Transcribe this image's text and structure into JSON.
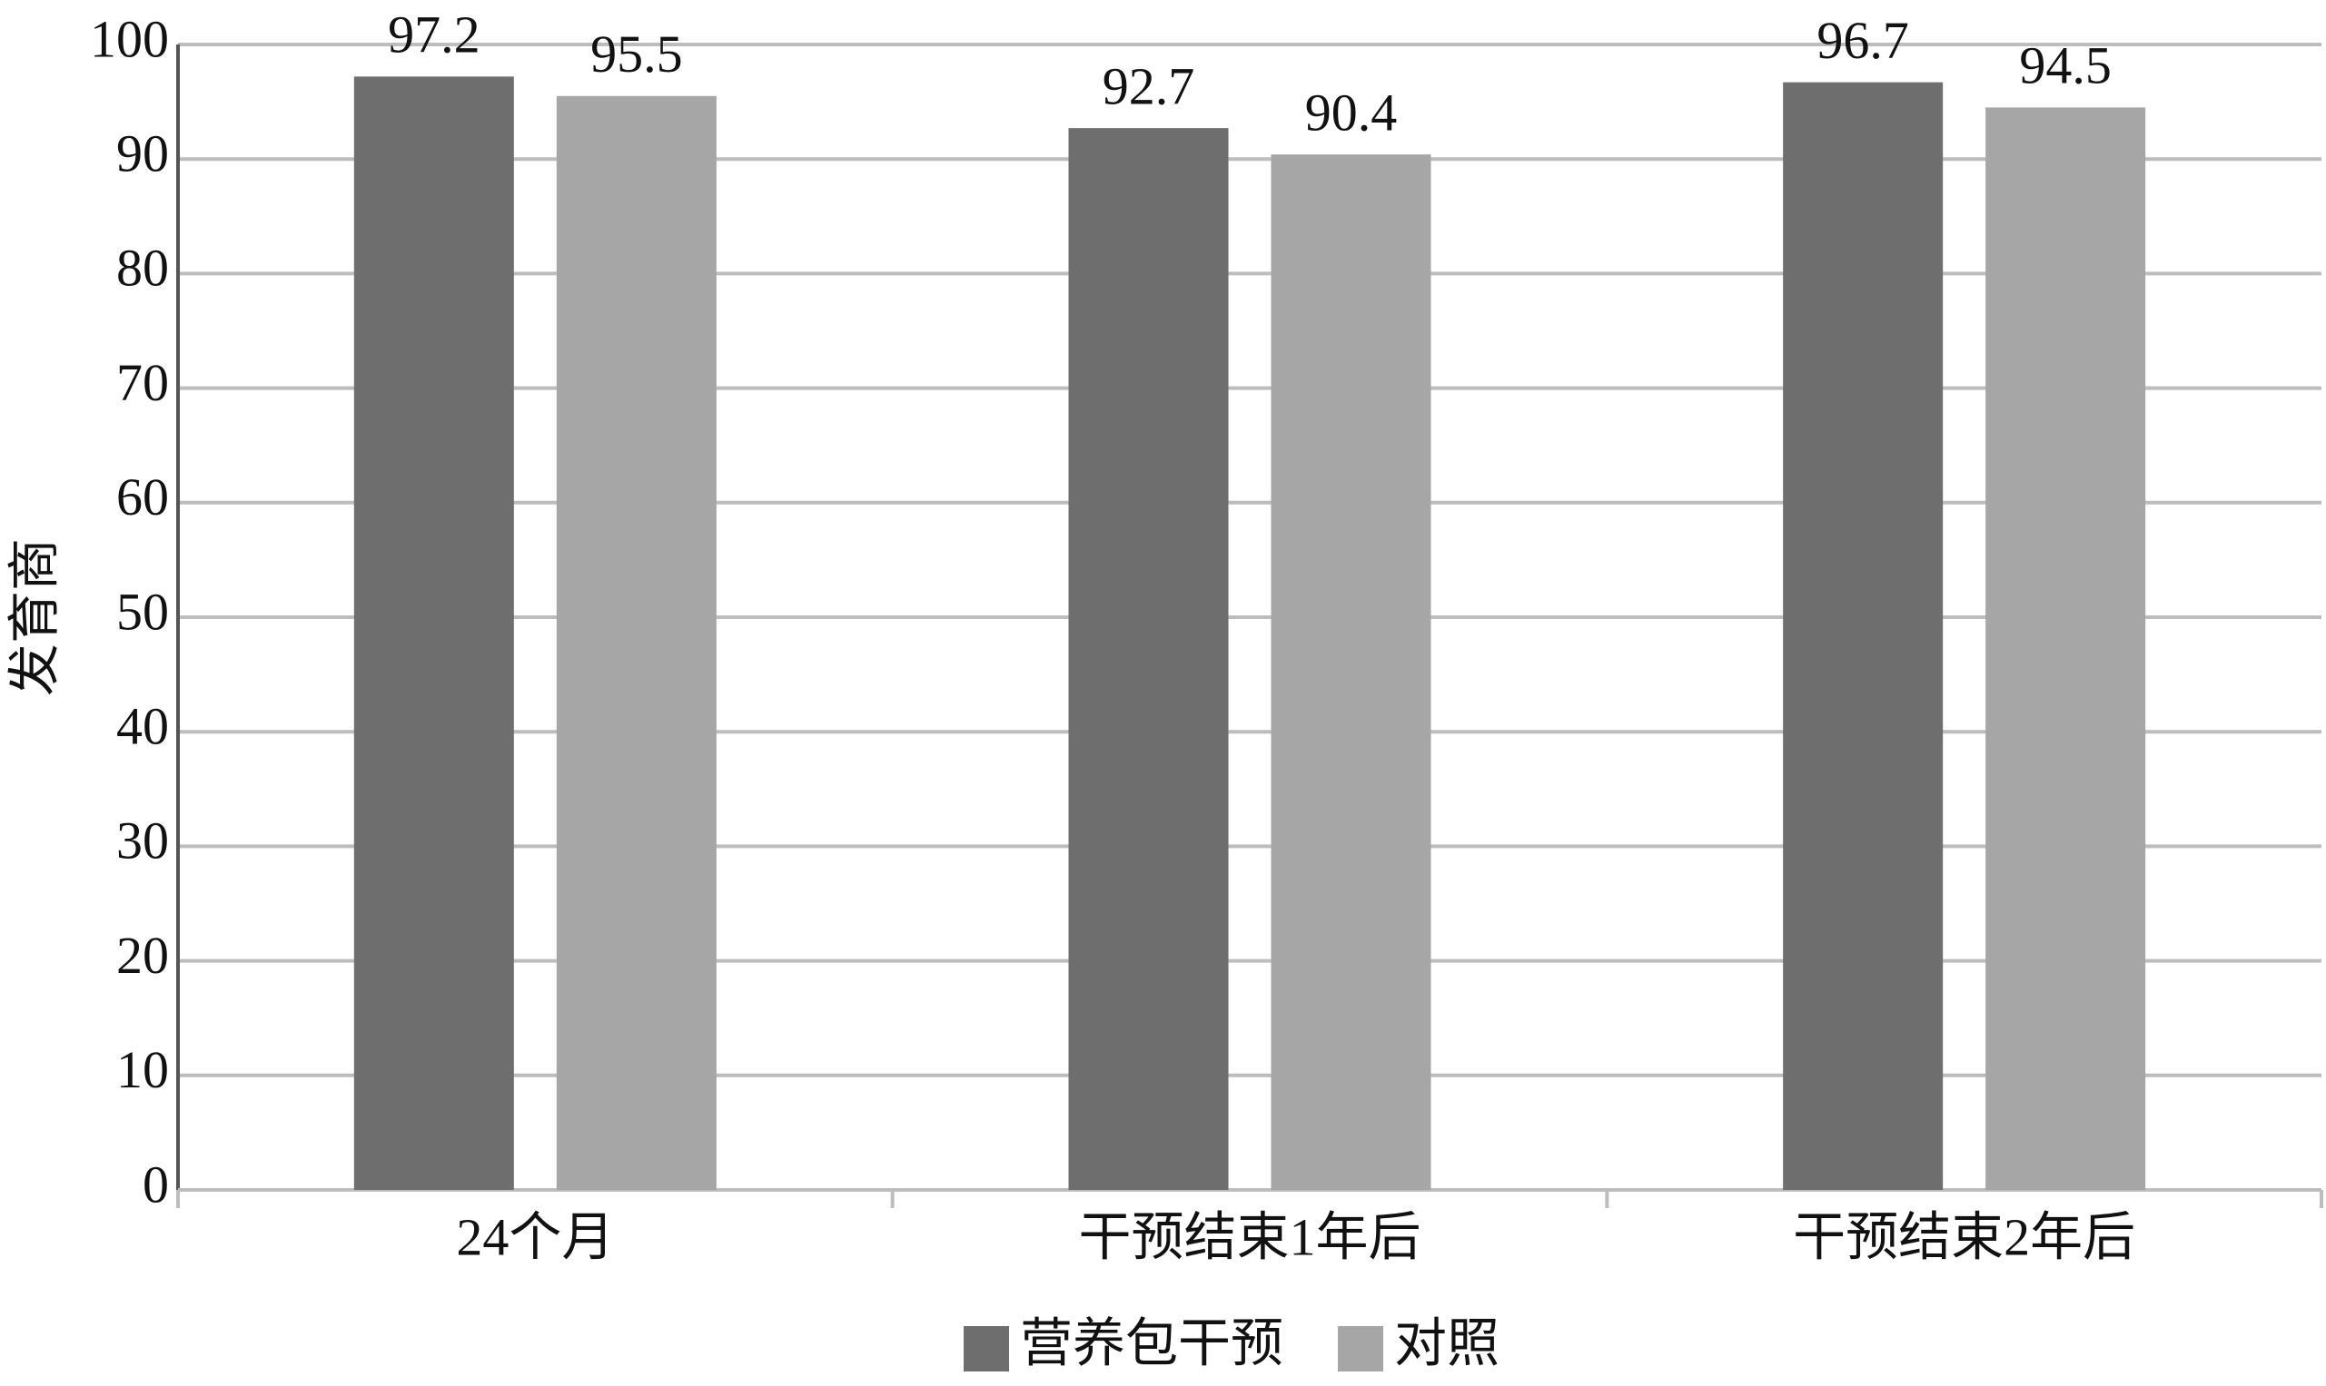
{
  "chart_data": {
    "type": "bar",
    "ylabel": "发育商",
    "categories": [
      "24个月",
      "干预结束1年后",
      "干预结束2年后"
    ],
    "series": [
      {
        "name": "营养包干预",
        "color": "#6e6e6e",
        "values": [
          97.2,
          92.7,
          96.7
        ]
      },
      {
        "name": "对照",
        "color": "#a6a6a6",
        "values": [
          95.5,
          90.4,
          94.5
        ]
      }
    ],
    "ylim": [
      0,
      100
    ],
    "yticks": [
      0,
      10,
      20,
      30,
      40,
      50,
      60,
      70,
      80,
      90,
      100
    ],
    "grid": true,
    "legend": "bottom"
  }
}
